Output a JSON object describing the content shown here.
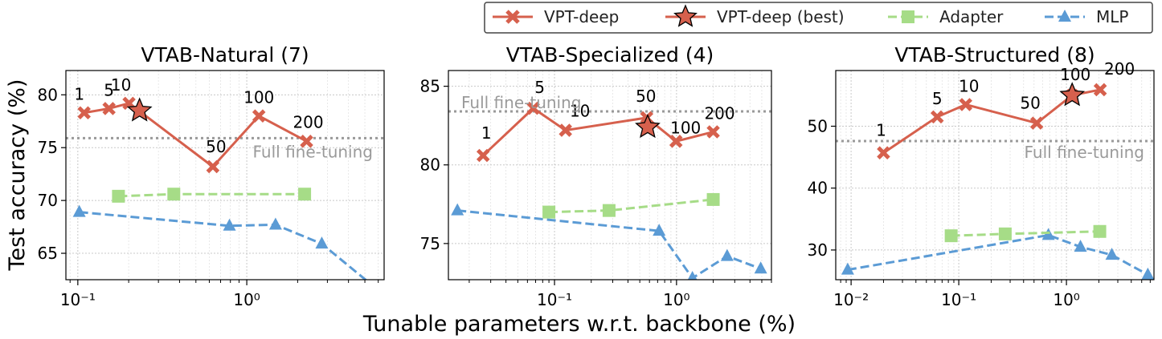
{
  "figure": {
    "ylabel": "Test accuracy (%)",
    "xlabel": "Tunable parameters w.r.t. backbone (%)",
    "reference_label": "Full fine-tuning"
  },
  "legend": {
    "placement": "top-right",
    "items": [
      {
        "label": "VPT-deep",
        "color": "#d6604d",
        "marker": "x-marker",
        "line": "solid"
      },
      {
        "label": "VPT-deep (best)",
        "color": "#d6604d",
        "marker": "star",
        "line": "solid"
      },
      {
        "label": "Adapter",
        "color": "#a6dc87",
        "marker": "square",
        "line": "dashed"
      },
      {
        "label": "MLP",
        "color": "#5b9bd5",
        "marker": "triangle",
        "line": "dashed"
      }
    ]
  },
  "chart_data": [
    {
      "type": "line",
      "title": "VTAB-Natural (7)",
      "xscale": "log",
      "xlim": [
        0.085,
        6.5
      ],
      "ylim": [
        62.5,
        82.3
      ],
      "yticks": [
        65,
        70,
        75,
        80
      ],
      "xticks": [
        0.1,
        1
      ],
      "xtick_labels": [
        "10⁻¹",
        "10⁰"
      ],
      "full_finetune": 75.9,
      "grid": true,
      "series": [
        {
          "name": "VPT-deep",
          "x": [
            0.109,
            0.153,
            0.201,
            0.63,
            1.18,
            2.26
          ],
          "y": [
            78.3,
            78.7,
            79.2,
            73.2,
            78.0,
            75.6
          ],
          "labels": [
            "1",
            "5",
            "10",
            "50",
            "100",
            "200"
          ]
        },
        {
          "name": "VPT-deep (best)",
          "x": [
            0.232
          ],
          "y": [
            78.5
          ]
        },
        {
          "name": "Adapter",
          "x": [
            0.174,
            0.37,
            2.2
          ],
          "y": [
            70.4,
            70.6,
            70.6
          ]
        },
        {
          "name": "MLP",
          "x": [
            0.102,
            0.79,
            1.48,
            2.78,
            5.7
          ],
          "y": [
            68.9,
            67.6,
            67.7,
            65.9,
            61.8
          ]
        }
      ]
    },
    {
      "type": "line",
      "title": "VTAB-Specialized (4)",
      "xscale": "log",
      "xlim": [
        0.0135,
        6.0
      ],
      "ylim": [
        72.7,
        86.0
      ],
      "yticks": [
        75,
        80,
        85
      ],
      "xticks": [
        0.1,
        1
      ],
      "xtick_labels": [
        "10⁻¹",
        "10⁰"
      ],
      "full_finetune": 83.4,
      "grid": true,
      "series": [
        {
          "name": "VPT-deep",
          "x": [
            0.026,
            0.067,
            0.123,
            0.57,
            0.99,
            2.0
          ],
          "y": [
            80.6,
            83.6,
            82.2,
            83.0,
            81.5,
            82.1
          ],
          "labels": [
            "1",
            "5",
            "10",
            "50",
            "100",
            "200"
          ]
        },
        {
          "name": "VPT-deep (best)",
          "x": [
            0.58
          ],
          "y": [
            82.4
          ]
        },
        {
          "name": "Adapter",
          "x": [
            0.09,
            0.28,
            2.0
          ],
          "y": [
            77.0,
            77.1,
            77.8
          ]
        },
        {
          "name": "MLP",
          "x": [
            0.016,
            0.72,
            1.35,
            2.6,
            4.9
          ],
          "y": [
            77.1,
            75.8,
            72.8,
            74.2,
            73.4
          ]
        }
      ]
    },
    {
      "type": "line",
      "title": "VTAB-Structured (8)",
      "xscale": "log",
      "xlim": [
        0.0072,
        6.5
      ],
      "ylim": [
        25.2,
        59.0
      ],
      "yticks": [
        30,
        40,
        50
      ],
      "xticks": [
        0.01,
        0.1,
        1
      ],
      "xtick_labels": [
        "10⁻²",
        "10⁻¹",
        "10⁰"
      ],
      "full_finetune": 47.6,
      "grid": true,
      "series": [
        {
          "name": "VPT-deep",
          "x": [
            0.02,
            0.063,
            0.116,
            0.53,
            1.13,
            2.06
          ],
          "y": [
            45.7,
            51.5,
            53.5,
            50.5,
            55.0,
            55.9
          ],
          "labels": [
            "1",
            "5",
            "10",
            "50",
            "100",
            "200"
          ]
        },
        {
          "name": "VPT-deep (best)",
          "x": [
            1.13
          ],
          "y": [
            55.0
          ]
        },
        {
          "name": "Adapter",
          "x": [
            0.085,
            0.27,
            2.04
          ],
          "y": [
            32.3,
            32.6,
            33.0
          ]
        },
        {
          "name": "MLP",
          "x": [
            0.0093,
            0.68,
            1.35,
            2.64,
            5.7
          ],
          "y": [
            26.8,
            32.4,
            30.5,
            29.2,
            26.0
          ]
        }
      ]
    }
  ]
}
